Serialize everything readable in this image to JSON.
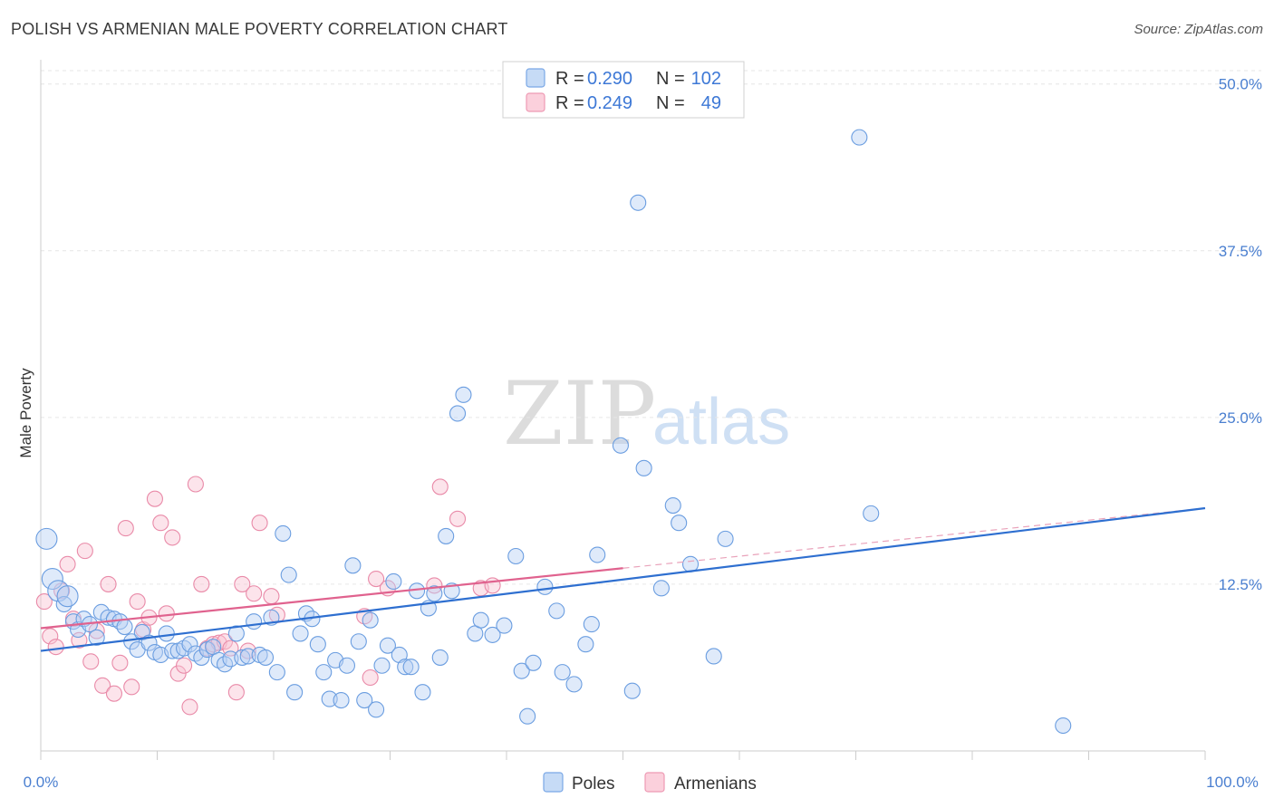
{
  "header": {
    "title": "POLISH VS ARMENIAN MALE POVERTY CORRELATION CHART",
    "source": "Source: ZipAtlas.com"
  },
  "watermark": {
    "zip": "ZIP",
    "atlas": "atlas"
  },
  "legend": {
    "rows": [
      {
        "r_label": "R =",
        "r_value": "0.290",
        "n_label": "N =",
        "n_value": "102",
        "color": "#9dbfee"
      },
      {
        "r_label": "R =",
        "r_value": "0.249",
        "n_label": "N =",
        "n_value": "49",
        "color": "#f5b8cb"
      }
    ]
  },
  "bottom_legend": [
    {
      "label": "Poles",
      "color": "#9dbfee"
    },
    {
      "label": "Armenians",
      "color": "#f5b8cb"
    }
  ],
  "chart_data": {
    "type": "scatter",
    "ylabel": "Male Poverty",
    "xlim": [
      0,
      100
    ],
    "ylim": [
      0,
      51
    ],
    "x_tick_labels": [
      "0.0%",
      "100.0%"
    ],
    "y_ticks": [
      12.5,
      25.0,
      37.5,
      50.0
    ],
    "y_tick_labels": [
      "12.5%",
      "25.0%",
      "37.5%",
      "50.0%"
    ],
    "grid": true,
    "colors": {
      "poles": "#6a9de0",
      "poles_line": "#2e6fd0",
      "armenians": "#e98aa8",
      "armenians_line": "#e0628e"
    },
    "series": [
      {
        "name": "Poles",
        "trend": {
          "x": [
            0,
            100
          ],
          "y": [
            7.5,
            18.2
          ]
        },
        "points": [
          [
            0.5,
            15.9
          ],
          [
            1,
            12.9
          ],
          [
            1.5,
            12
          ],
          [
            2,
            11
          ],
          [
            2.3,
            11.6
          ],
          [
            2.8,
            9.7
          ],
          [
            3.2,
            9.1
          ],
          [
            3.7,
            9.9
          ],
          [
            4.2,
            9.5
          ],
          [
            4.8,
            8.5
          ],
          [
            5.2,
            10.4
          ],
          [
            5.8,
            10
          ],
          [
            6.3,
            9.9
          ],
          [
            6.8,
            9.7
          ],
          [
            7.2,
            9.3
          ],
          [
            7.8,
            8.2
          ],
          [
            8.3,
            7.6
          ],
          [
            8.7,
            8.9
          ],
          [
            9.3,
            8.1
          ],
          [
            9.8,
            7.4
          ],
          [
            10.3,
            7.2
          ],
          [
            10.8,
            8.8
          ],
          [
            11.3,
            7.5
          ],
          [
            11.8,
            7.5
          ],
          [
            12.3,
            7.7
          ],
          [
            12.8,
            8
          ],
          [
            13.3,
            7.3
          ],
          [
            13.8,
            7
          ],
          [
            14.3,
            7.6
          ],
          [
            14.8,
            7.8
          ],
          [
            15.3,
            6.8
          ],
          [
            15.8,
            6.5
          ],
          [
            16.3,
            6.9
          ],
          [
            16.8,
            8.8
          ],
          [
            17.3,
            7
          ],
          [
            17.8,
            7.1
          ],
          [
            18.3,
            9.7
          ],
          [
            18.8,
            7.2
          ],
          [
            19.3,
            7
          ],
          [
            19.8,
            10
          ],
          [
            20.3,
            5.9
          ],
          [
            20.8,
            16.3
          ],
          [
            21.3,
            13.2
          ],
          [
            21.8,
            4.4
          ],
          [
            22.3,
            8.8
          ],
          [
            22.8,
            10.3
          ],
          [
            23.3,
            9.9
          ],
          [
            23.8,
            8
          ],
          [
            24.3,
            5.9
          ],
          [
            24.8,
            3.9
          ],
          [
            25.3,
            6.8
          ],
          [
            25.8,
            3.8
          ],
          [
            26.3,
            6.4
          ],
          [
            26.8,
            13.9
          ],
          [
            27.3,
            8.2
          ],
          [
            27.8,
            3.8
          ],
          [
            28.3,
            9.8
          ],
          [
            28.8,
            3.1
          ],
          [
            29.3,
            6.4
          ],
          [
            29.8,
            7.9
          ],
          [
            30.3,
            12.7
          ],
          [
            30.8,
            7.2
          ],
          [
            31.3,
            6.3
          ],
          [
            31.8,
            6.3
          ],
          [
            32.3,
            12
          ],
          [
            32.8,
            4.4
          ],
          [
            33.3,
            10.7
          ],
          [
            33.8,
            11.8
          ],
          [
            34.3,
            7
          ],
          [
            34.8,
            16.1
          ],
          [
            35.3,
            12
          ],
          [
            35.8,
            25.3
          ],
          [
            36.3,
            26.7
          ],
          [
            37.3,
            8.8
          ],
          [
            37.8,
            9.8
          ],
          [
            38.8,
            8.7
          ],
          [
            39.8,
            9.4
          ],
          [
            40.8,
            14.6
          ],
          [
            41.3,
            6
          ],
          [
            41.8,
            2.6
          ],
          [
            42.3,
            6.6
          ],
          [
            43.3,
            12.3
          ],
          [
            44.3,
            10.5
          ],
          [
            44.8,
            5.9
          ],
          [
            45.8,
            5
          ],
          [
            46.8,
            8
          ],
          [
            47.3,
            9.5
          ],
          [
            47.8,
            14.7
          ],
          [
            49.8,
            22.9
          ],
          [
            50.8,
            4.5
          ],
          [
            51.3,
            41.1
          ],
          [
            51.8,
            21.2
          ],
          [
            53.3,
            12.2
          ],
          [
            54.3,
            18.4
          ],
          [
            54.8,
            17.1
          ],
          [
            55.8,
            14
          ],
          [
            57.8,
            7.1
          ],
          [
            58.8,
            15.9
          ],
          [
            71.3,
            17.8
          ],
          [
            87.8,
            1.9
          ],
          [
            70.3,
            46
          ]
        ]
      },
      {
        "name": "Armenians",
        "trend": {
          "x": [
            0,
            50
          ],
          "y": [
            9.2,
            13.7
          ]
        },
        "trend_dashed": {
          "x": [
            50,
            100
          ],
          "y": [
            13.7,
            18.2
          ]
        },
        "points": [
          [
            0.3,
            11.2
          ],
          [
            0.8,
            8.6
          ],
          [
            1.3,
            7.8
          ],
          [
            1.8,
            12
          ],
          [
            2.3,
            14
          ],
          [
            2.8,
            9.9
          ],
          [
            3.3,
            8.3
          ],
          [
            3.8,
            15
          ],
          [
            4.3,
            6.7
          ],
          [
            4.8,
            9
          ],
          [
            5.3,
            4.9
          ],
          [
            5.8,
            12.5
          ],
          [
            6.3,
            4.3
          ],
          [
            6.8,
            6.6
          ],
          [
            7.3,
            16.7
          ],
          [
            7.8,
            4.8
          ],
          [
            8.3,
            11.2
          ],
          [
            8.8,
            9.1
          ],
          [
            9.3,
            10
          ],
          [
            9.8,
            18.9
          ],
          [
            10.3,
            17.1
          ],
          [
            10.8,
            10.3
          ],
          [
            11.3,
            16
          ],
          [
            11.8,
            5.8
          ],
          [
            12.3,
            6.4
          ],
          [
            12.8,
            3.3
          ],
          [
            13.3,
            20
          ],
          [
            13.8,
            12.5
          ],
          [
            14.3,
            7.7
          ],
          [
            14.8,
            8
          ],
          [
            15.3,
            8.1
          ],
          [
            15.8,
            8.2
          ],
          [
            16.3,
            7.7
          ],
          [
            16.8,
            4.4
          ],
          [
            17.3,
            12.5
          ],
          [
            17.8,
            7.5
          ],
          [
            18.3,
            11.8
          ],
          [
            18.8,
            17.1
          ],
          [
            19.8,
            11.6
          ],
          [
            20.3,
            10.2
          ],
          [
            27.8,
            10.1
          ],
          [
            28.3,
            5.5
          ],
          [
            28.8,
            12.9
          ],
          [
            29.8,
            12.2
          ],
          [
            33.8,
            12.4
          ],
          [
            34.3,
            19.8
          ],
          [
            35.8,
            17.4
          ],
          [
            37.8,
            12.2
          ],
          [
            38.8,
            12.4
          ]
        ]
      }
    ]
  }
}
